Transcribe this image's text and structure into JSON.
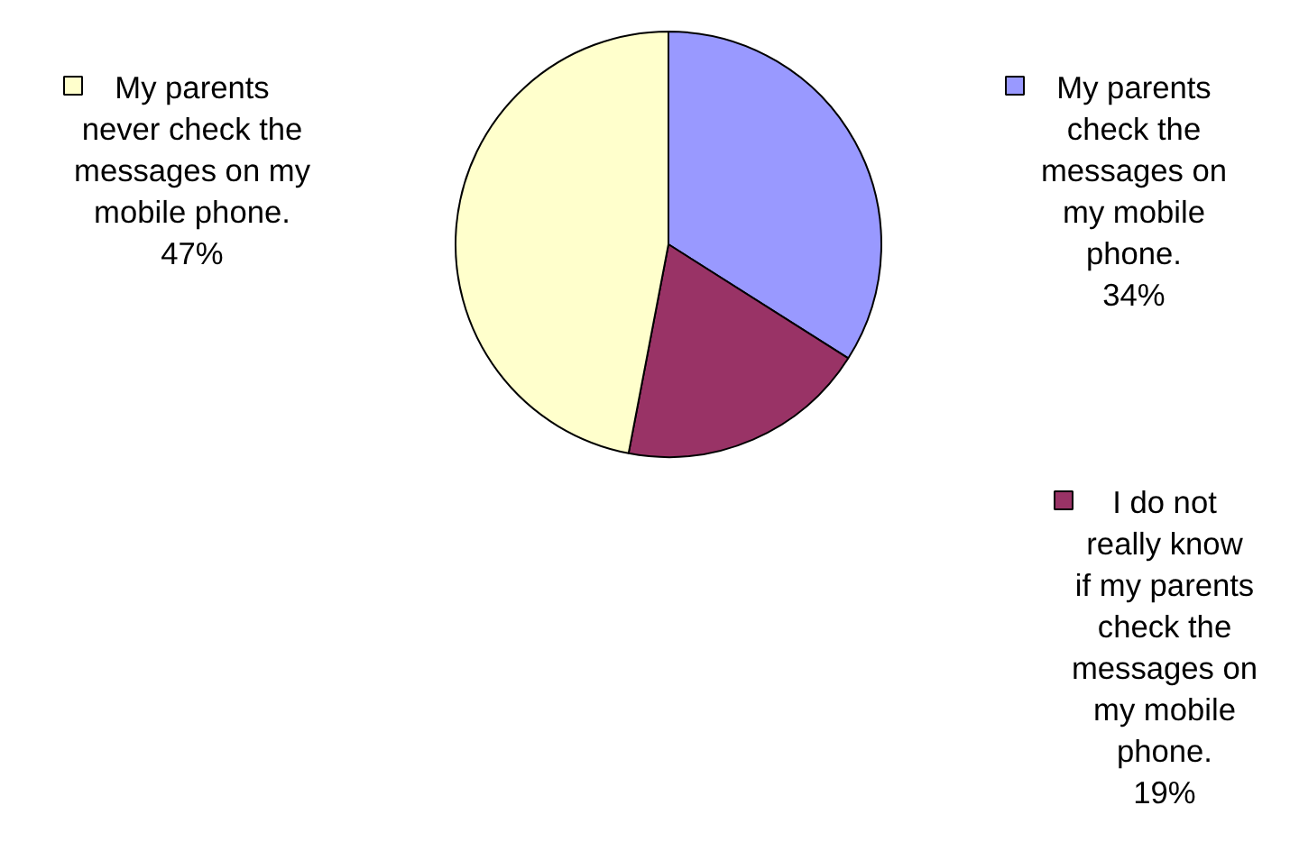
{
  "chart_data": {
    "type": "pie",
    "categories": [
      "My parents check the messages on my mobile phone.",
      "I do not really know if my parents check the messages on my mobile phone.",
      "My parents never check the messages on my mobile phone."
    ],
    "values": [
      34,
      19,
      47
    ],
    "colors": [
      "#9999ff",
      "#993366",
      "#ffffcc"
    ],
    "value_labels": [
      "34%",
      "19%",
      "47%"
    ],
    "legend": "right"
  }
}
